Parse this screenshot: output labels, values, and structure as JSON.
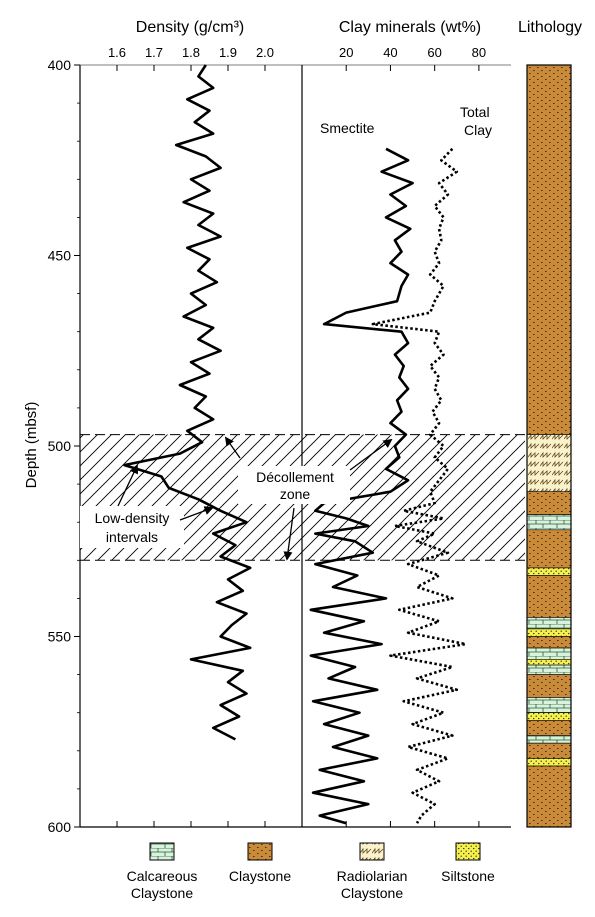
{
  "headers": {
    "density": "Density (g/cm³)",
    "clay": "Clay minerals (wt%)",
    "lithology": "Lithology"
  },
  "ylabel": "Depth (mbsf)",
  "annotations": {
    "smectite": "Smectite",
    "total_clay_1": "Total",
    "total_clay_2": "Clay",
    "decollement_1": "Décollement",
    "decollement_2": "zone",
    "low_density_1": "Low-density",
    "low_density_2": "intervals"
  },
  "legend": {
    "calcareous_1": "Calcareous",
    "calcareous_2": "Claystone",
    "claystone": "Claystone",
    "radiolarian_1": "Radiolarian",
    "radiolarian_2": "Claystone",
    "siltstone": "Siltstone"
  },
  "colors": {
    "claystone": "#c98a3a",
    "calcareous": "#d8f2dd",
    "radiolarian": "#fbf2cc",
    "siltstone": "#f6f24a"
  },
  "chart_data": {
    "type": "line",
    "y_axis": {
      "label": "Depth (mbsf)",
      "range": [
        400,
        600
      ],
      "ticks": [
        400,
        450,
        500,
        550,
        600
      ],
      "reversed": true
    },
    "decollement_zone": [
      497,
      530
    ],
    "panels": [
      {
        "name": "density",
        "x_label": "Density (g/cm³)",
        "x_range": [
          1.5,
          2.1
        ],
        "x_ticks": [
          1.6,
          1.7,
          1.8,
          1.9,
          2.0
        ],
        "series": [
          {
            "style": "solid",
            "depth": [
              400,
              403,
              406,
              409,
              412,
              415,
              418,
              421,
              424,
              427,
              430,
              433,
              436,
              439,
              442,
              445,
              448,
              451,
              454,
              457,
              460,
              463,
              466,
              469,
              472,
              475,
              478,
              481,
              484,
              487,
              490,
              493,
              496,
              499,
              502,
              505,
              508,
              511,
              514,
              517,
              520,
              523,
              526,
              529,
              532,
              535,
              538,
              541,
              544,
              547,
              550,
              553,
              556,
              559,
              562,
              565,
              568,
              571,
              574,
              577
            ],
            "values": [
              1.84,
              1.82,
              1.86,
              1.79,
              1.85,
              1.81,
              1.86,
              1.76,
              1.84,
              1.88,
              1.8,
              1.85,
              1.78,
              1.86,
              1.82,
              1.88,
              1.79,
              1.85,
              1.82,
              1.87,
              1.8,
              1.84,
              1.78,
              1.86,
              1.82,
              1.88,
              1.8,
              1.85,
              1.77,
              1.84,
              1.81,
              1.86,
              1.79,
              1.83,
              1.77,
              1.62,
              1.72,
              1.74,
              1.82,
              1.88,
              1.95,
              1.86,
              1.92,
              1.88,
              1.96,
              1.9,
              1.94,
              1.87,
              1.95,
              1.91,
              1.88,
              1.96,
              1.8,
              1.94,
              1.9,
              1.95,
              1.88,
              1.93,
              1.86,
              1.92
            ]
          }
        ]
      },
      {
        "name": "clay",
        "x_label": "Clay minerals (wt%)",
        "x_range": [
          0,
          90
        ],
        "x_ticks": [
          20,
          40,
          60,
          80
        ],
        "series": [
          {
            "name": "Smectite",
            "style": "solid",
            "depth": [
              422,
              425,
              428,
              431,
              434,
              437,
              440,
              443,
              446,
              449,
              452,
              455,
              458,
              462,
              465,
              468,
              470,
              473,
              476,
              479,
              482,
              485,
              488,
              491,
              494,
              497,
              500,
              503,
              506,
              509,
              512,
              515,
              517,
              519,
              521,
              523,
              525,
              528,
              531,
              534,
              537,
              540,
              543,
              546,
              549,
              552,
              555,
              558,
              561,
              564,
              567,
              570,
              573,
              576,
              579,
              582,
              585,
              588,
              591,
              594,
              597,
              599
            ],
            "values": [
              38,
              48,
              36,
              50,
              40,
              47,
              38,
              49,
              42,
              45,
              40,
              48,
              45,
              43,
              20,
              10,
              45,
              48,
              42,
              46,
              44,
              48,
              43,
              45,
              40,
              47,
              42,
              44,
              38,
              48,
              40,
              10,
              6,
              20,
              30,
              6,
              24,
              32,
              6,
              25,
              14,
              38,
              4,
              28,
              10,
              36,
              4,
              24,
              12,
              34,
              5,
              26,
              10,
              30,
              14,
              34,
              8,
              28,
              5,
              30,
              8,
              20
            ]
          },
          {
            "name": "Total Clay",
            "style": "dotted",
            "depth": [
              422,
              425,
              428,
              431,
              434,
              437,
              440,
              443,
              446,
              449,
              452,
              455,
              458,
              462,
              465,
              468,
              470,
              473,
              476,
              479,
              482,
              485,
              488,
              491,
              494,
              497,
              500,
              503,
              506,
              509,
              512,
              515,
              517,
              519,
              521,
              523,
              525,
              528,
              531,
              534,
              537,
              540,
              543,
              546,
              549,
              552,
              555,
              558,
              561,
              564,
              567,
              570,
              573,
              576,
              579,
              582,
              585,
              588,
              591,
              594,
              597,
              599
            ],
            "values": [
              68,
              63,
              70,
              62,
              66,
              60,
              64,
              62,
              63,
              60,
              62,
              58,
              64,
              60,
              58,
              32,
              62,
              60,
              64,
              58,
              62,
              60,
              63,
              59,
              62,
              58,
              64,
              60,
              66,
              62,
              58,
              60,
              46,
              64,
              42,
              60,
              52,
              66,
              48,
              62,
              52,
              68,
              44,
              62,
              48,
              74,
              40,
              68,
              52,
              70,
              46,
              64,
              50,
              68,
              48,
              66,
              52,
              62,
              50,
              60,
              54,
              52
            ]
          }
        ]
      }
    ],
    "lithology": [
      {
        "from": 400,
        "to": 497,
        "type": "claystone"
      },
      {
        "from": 497,
        "to": 512,
        "type": "radiolarian"
      },
      {
        "from": 512,
        "to": 518,
        "type": "claystone"
      },
      {
        "from": 518,
        "to": 522,
        "type": "calcareous"
      },
      {
        "from": 522,
        "to": 532,
        "type": "claystone"
      },
      {
        "from": 532,
        "to": 534,
        "type": "siltstone"
      },
      {
        "from": 534,
        "to": 545,
        "type": "claystone"
      },
      {
        "from": 545,
        "to": 548,
        "type": "calcareous"
      },
      {
        "from": 548,
        "to": 550,
        "type": "siltstone"
      },
      {
        "from": 550,
        "to": 553,
        "type": "claystone"
      },
      {
        "from": 553,
        "to": 556,
        "type": "calcareous"
      },
      {
        "from": 556,
        "to": 557.5,
        "type": "siltstone"
      },
      {
        "from": 557.5,
        "to": 560,
        "type": "calcareous"
      },
      {
        "from": 560,
        "to": 566,
        "type": "claystone"
      },
      {
        "from": 566,
        "to": 570,
        "type": "calcareous"
      },
      {
        "from": 570,
        "to": 572,
        "type": "siltstone"
      },
      {
        "from": 572,
        "to": 576,
        "type": "claystone"
      },
      {
        "from": 576,
        "to": 578,
        "type": "calcareous"
      },
      {
        "from": 578,
        "to": 582,
        "type": "claystone"
      },
      {
        "from": 582,
        "to": 584,
        "type": "siltstone"
      },
      {
        "from": 584,
        "to": 600,
        "type": "claystone"
      }
    ]
  }
}
